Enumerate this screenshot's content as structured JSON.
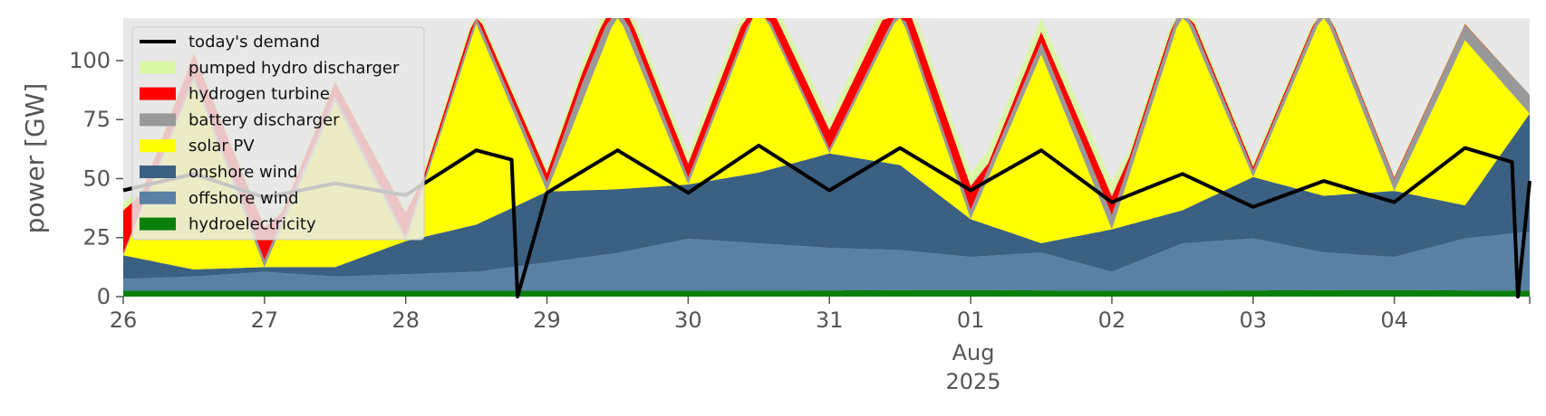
{
  "chart_data": {
    "type": "area",
    "title": "",
    "xlabel": "",
    "ylabel": "power [GW]",
    "ylim": [
      0,
      118
    ],
    "xlim_days": [
      "2025-07-26",
      "2025-08-04T23:00"
    ],
    "yticks": [
      0,
      25,
      50,
      75,
      100
    ],
    "yticks_labels": [
      "0",
      "25",
      "50",
      "75",
      "100"
    ],
    "xticks": [
      {
        "date": "2025-07-26",
        "label": "26"
      },
      {
        "date": "2025-07-27",
        "label": "27"
      },
      {
        "date": "2025-07-28",
        "label": "28"
      },
      {
        "date": "2025-07-29",
        "label": "29"
      },
      {
        "date": "2025-07-30",
        "label": "30"
      },
      {
        "date": "2025-07-31",
        "label": "31"
      },
      {
        "date": "2025-08-01",
        "label": "01"
      },
      {
        "date": "2025-08-02",
        "label": "02"
      },
      {
        "date": "2025-08-03",
        "label": "03"
      },
      {
        "date": "2025-08-04",
        "label": "04"
      }
    ],
    "month_label": "Aug",
    "year_label": "2025",
    "background": "#e8e8e8",
    "grid": false,
    "legend_position": "top-left",
    "stack_order": [
      "hydroelectricity",
      "offshore wind",
      "onshore wind",
      "solar PV",
      "battery discharger",
      "hydrogen turbine",
      "pumped hydro discharger"
    ],
    "series": [
      {
        "name": "hydroelectricity",
        "color": "#0a7f0a",
        "x": [
          "2025-07-26",
          "2025-07-28",
          "2025-07-30",
          "2025-08-01",
          "2025-08-02",
          "2025-08-04",
          "2025-08-04T23:00"
        ],
        "values": [
          2.5,
          2.5,
          2.5,
          2.8,
          2.5,
          2.8,
          2.5
        ]
      },
      {
        "name": "offshore wind",
        "color": "#5a80a4",
        "x": [
          "2025-07-26",
          "2025-07-26T12:00",
          "2025-07-27",
          "2025-07-27T12:00",
          "2025-07-28",
          "2025-07-28T12:00",
          "2025-07-29",
          "2025-07-29T12:00",
          "2025-07-30",
          "2025-07-30T12:00",
          "2025-07-31",
          "2025-07-31T12:00",
          "2025-08-01",
          "2025-08-01T12:00",
          "2025-08-02",
          "2025-08-02T12:00",
          "2025-08-03",
          "2025-08-03T12:00",
          "2025-08-04",
          "2025-08-04T12:00",
          "2025-08-04T23:00"
        ],
        "values": [
          5,
          6,
          8,
          6,
          7,
          8,
          12,
          16,
          22,
          20,
          18,
          17,
          14,
          16,
          8,
          20,
          22,
          16,
          14,
          22,
          25
        ]
      },
      {
        "name": "onshore wind",
        "color": "#3b6082",
        "x": [
          "2025-07-26",
          "2025-07-26T12:00",
          "2025-07-27",
          "2025-07-27T12:00",
          "2025-07-28",
          "2025-07-28T12:00",
          "2025-07-29",
          "2025-07-29T12:00",
          "2025-07-30",
          "2025-07-30T12:00",
          "2025-07-31",
          "2025-07-31T12:00",
          "2025-08-01",
          "2025-08-01T12:00",
          "2025-08-02",
          "2025-08-02T12:00",
          "2025-08-03",
          "2025-08-03T12:00",
          "2025-08-04",
          "2025-08-04T12:00",
          "2025-08-04T23:00"
        ],
        "values": [
          10,
          3,
          2,
          4,
          14,
          20,
          30,
          27,
          23,
          30,
          40,
          36,
          16,
          4,
          18,
          14,
          26,
          24,
          28,
          14,
          50
        ]
      },
      {
        "name": "solar PV",
        "color": "#ffff00",
        "x": [
          "2025-07-26",
          "2025-07-26T12:00",
          "2025-07-27",
          "2025-07-27T12:00",
          "2025-07-28",
          "2025-07-28T12:00",
          "2025-07-29",
          "2025-07-29T12:00",
          "2025-07-30",
          "2025-07-30T12:00",
          "2025-07-31",
          "2025-07-31T12:00",
          "2025-08-01",
          "2025-08-01T12:00",
          "2025-08-02",
          "2025-08-02T12:00",
          "2025-08-03",
          "2025-08-03T12:00",
          "2025-08-04",
          "2025-08-04T12:00",
          "2025-08-04T23:00"
        ],
        "values": [
          0,
          80,
          0,
          70,
          0,
          85,
          0,
          75,
          0,
          72,
          0,
          65,
          0,
          80,
          0,
          85,
          0,
          78,
          0,
          70,
          0
        ]
      },
      {
        "name": "battery discharger",
        "color": "#999999",
        "x": [
          "2025-07-26",
          "2025-07-27",
          "2025-07-28",
          "2025-07-29",
          "2025-07-29T06:00",
          "2025-07-30",
          "2025-07-31",
          "2025-08-01",
          "2025-08-02",
          "2025-08-03",
          "2025-08-04",
          "2025-08-04T23:00"
        ],
        "values": [
          1,
          3,
          2,
          4,
          8,
          3,
          2,
          4,
          6,
          3,
          5,
          8
        ]
      },
      {
        "name": "hydrogen turbine",
        "color": "#ff0000",
        "x": [
          "2025-07-26",
          "2025-07-26T03:00",
          "2025-07-27",
          "2025-07-27T03:00",
          "2025-07-28",
          "2025-07-28T03:00",
          "2025-08-01",
          "2025-08-01T03:00",
          "2025-08-02",
          "2025-08-02T03:00",
          "2025-08-04T23:00"
        ],
        "values": [
          18,
          6,
          14,
          3,
          10,
          2,
          10,
          2,
          8,
          2,
          0
        ]
      },
      {
        "name": "pumped hydro discharger",
        "color": "#daf7a6",
        "x": [
          "2025-07-26",
          "2025-07-29",
          "2025-07-29T06:00",
          "2025-08-02",
          "2025-08-02T03:00",
          "2025-08-04T23:00"
        ],
        "values": [
          3,
          2,
          4,
          6,
          3,
          0
        ]
      },
      {
        "name": "today's demand",
        "color": "#000000",
        "kind": "line",
        "x": [
          "2025-07-26",
          "2025-07-26T12:00",
          "2025-07-27",
          "2025-07-27T12:00",
          "2025-07-28",
          "2025-07-28T12:00",
          "2025-07-28T18:00",
          "2025-07-28T19:00",
          "2025-07-29",
          "2025-07-29T12:00",
          "2025-07-30",
          "2025-07-30T12:00",
          "2025-07-31",
          "2025-07-31T12:00",
          "2025-08-01",
          "2025-08-01T12:00",
          "2025-08-02",
          "2025-08-02T12:00",
          "2025-08-03",
          "2025-08-03T12:00",
          "2025-08-04",
          "2025-08-04T12:00",
          "2025-08-04T20:00",
          "2025-08-04T21:00",
          "2025-08-04T23:00"
        ],
        "values": [
          45,
          52,
          42,
          48,
          43,
          62,
          58,
          0,
          44,
          62,
          44,
          64,
          45,
          63,
          45,
          62,
          40,
          52,
          38,
          49,
          40,
          63,
          57,
          0,
          49
        ]
      }
    ]
  }
}
